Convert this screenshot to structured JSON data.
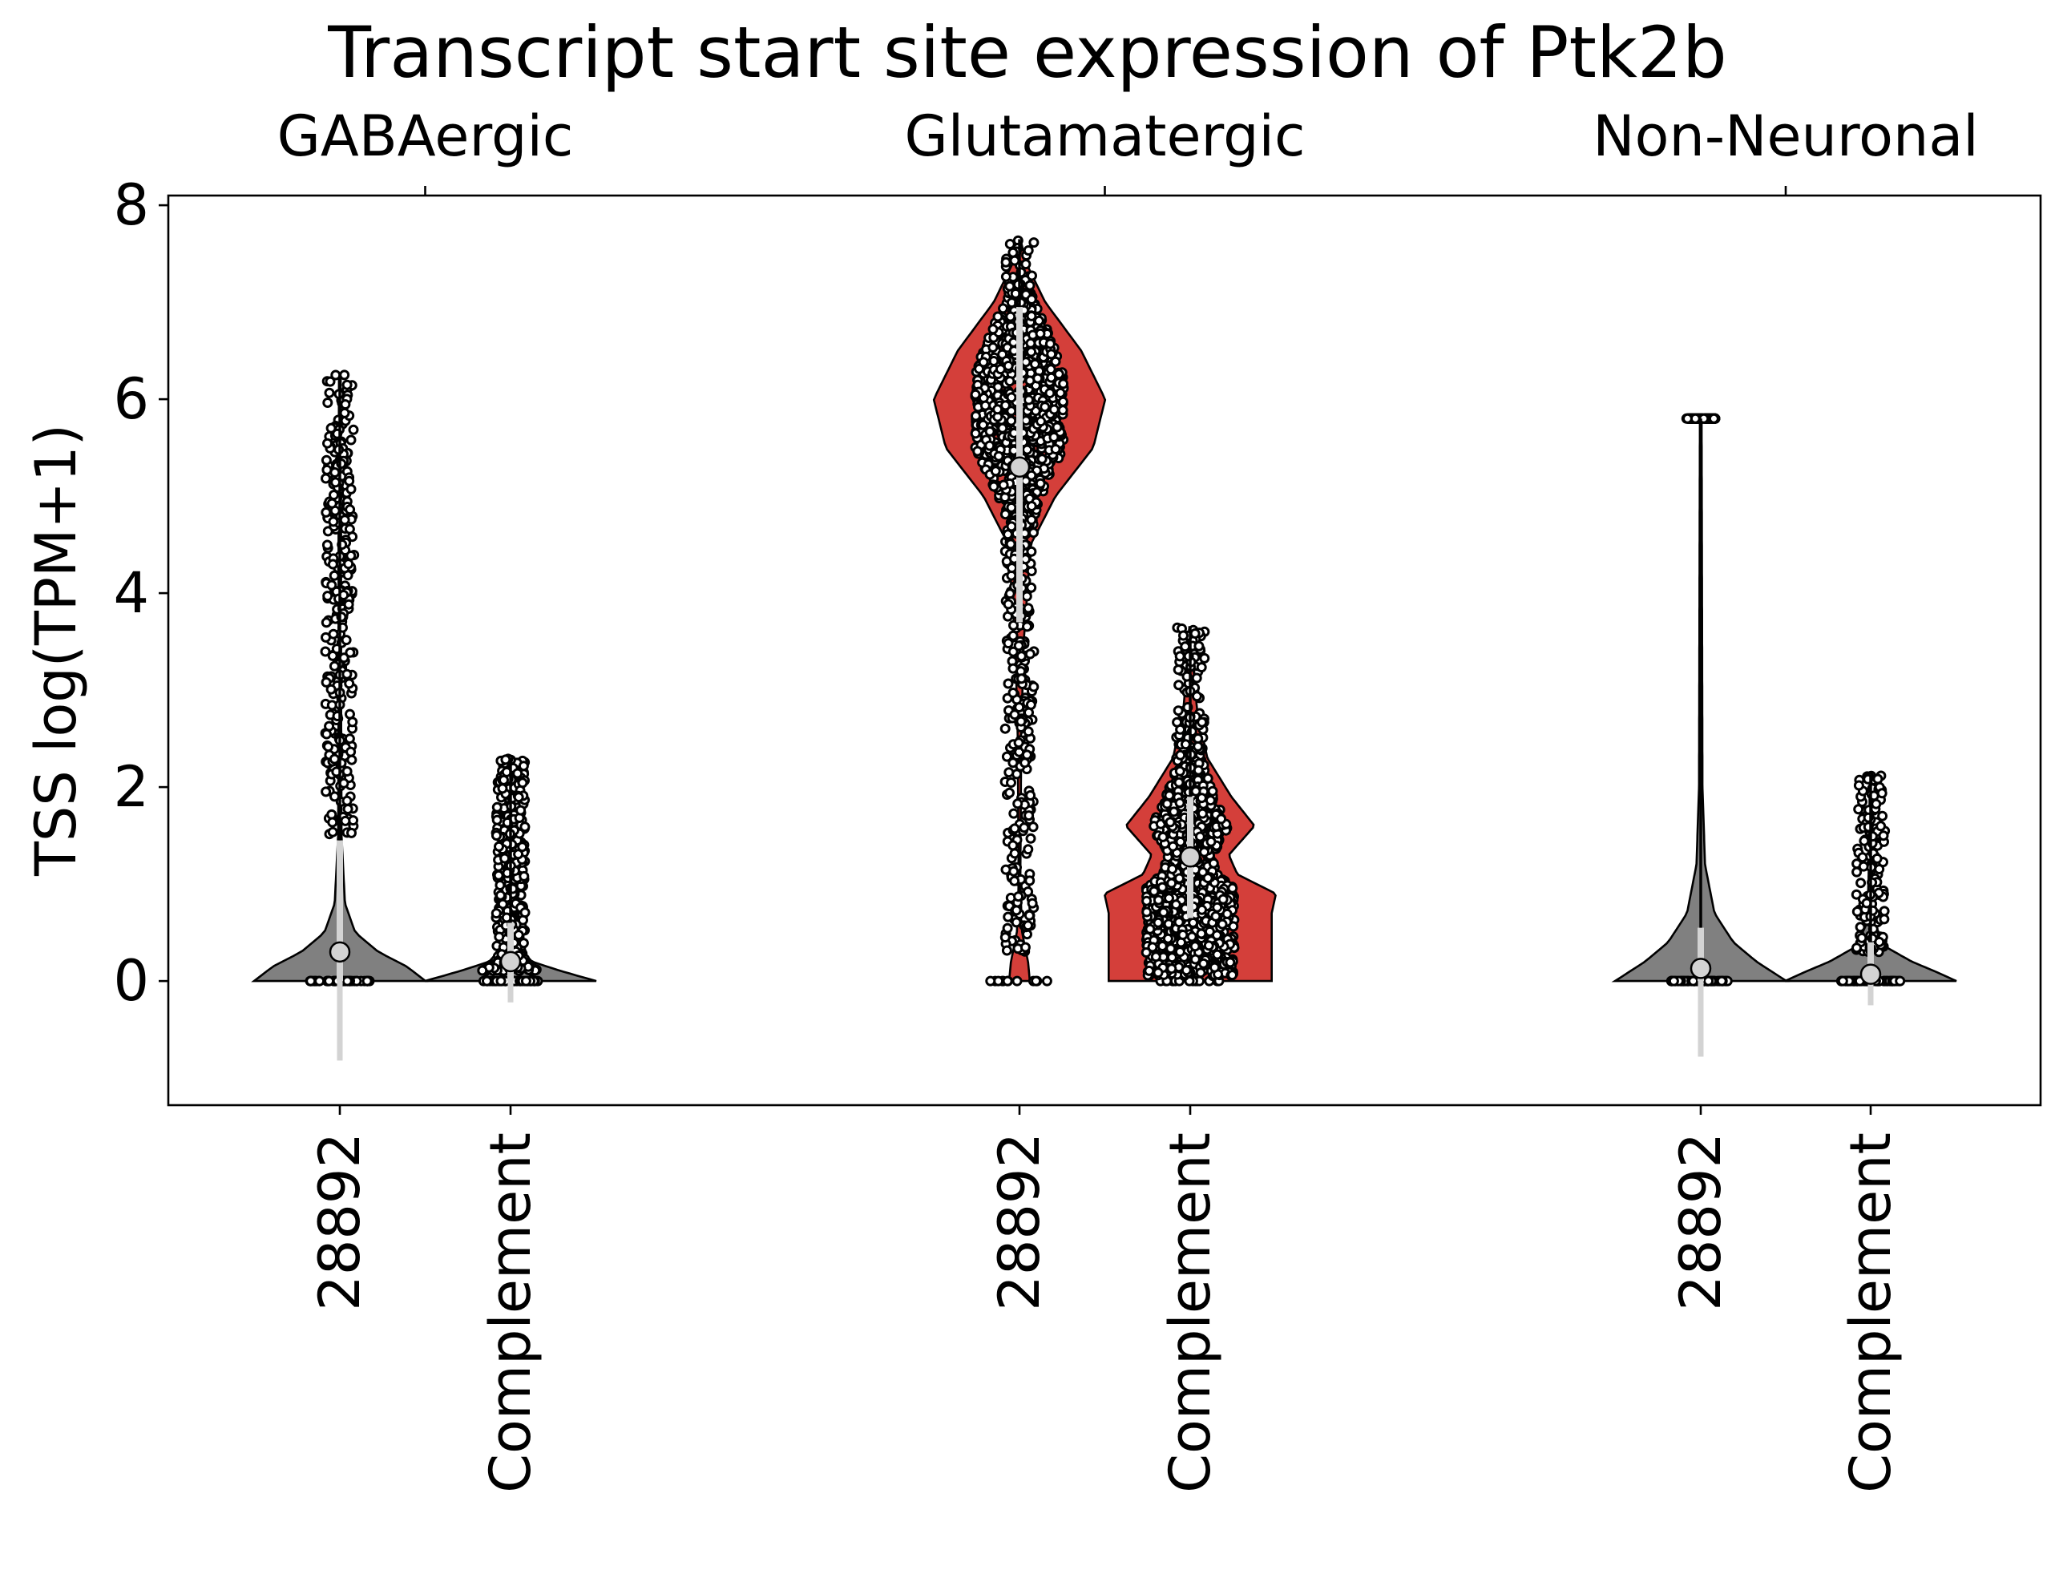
{
  "chart_data": {
    "type": "violin",
    "title": "Transcript start site expression of Ptk2b",
    "ylabel": "TSS log(TPM+1)",
    "xlabel": "",
    "ylim": [
      -1.28,
      8.1
    ],
    "yticks": [
      0,
      2,
      4,
      6,
      8
    ],
    "grid": false,
    "legend": "none",
    "groups": [
      "GABAergic",
      "Glutamatergic",
      "Non-Neuronal"
    ],
    "categories": [
      "28892",
      "Complement",
      "28892",
      "Complement",
      "28892",
      "Complement"
    ],
    "colors": {
      "highlight": "#d43f3a",
      "neutral": "#808080",
      "box": "#d3d3d3"
    },
    "series": [
      {
        "group": "GABAergic",
        "category": "28892",
        "color": "#808080",
        "median": 0.3,
        "q1": 0.0,
        "q3": 1.45,
        "whisker_low": -0.82,
        "whisker_high": 1.45,
        "max": 6.25,
        "fraction_zero": 0.6,
        "density": [
          [
            0,
            1.0
          ],
          [
            0.15,
            0.78
          ],
          [
            0.3,
            0.45
          ],
          [
            0.5,
            0.18
          ],
          [
            0.8,
            0.06
          ],
          [
            1.5,
            0.02
          ],
          [
            3,
            0.015
          ],
          [
            4.5,
            0.015
          ],
          [
            6.25,
            0.01
          ]
        ],
        "nonzero_range": [
          1.5,
          6.25
        ]
      },
      {
        "group": "GABAergic",
        "category": "Complement",
        "color": "#808080",
        "median": 0.2,
        "q1": 0.0,
        "q3": 0.6,
        "whisker_low": -0.22,
        "whisker_high": 0.6,
        "max": 2.3,
        "fraction_zero": 0.45,
        "density": [
          [
            0,
            1.0
          ],
          [
            0.1,
            0.6
          ],
          [
            0.2,
            0.25
          ],
          [
            0.4,
            0.05
          ],
          [
            1.0,
            0.02
          ],
          [
            2.3,
            0.01
          ]
        ],
        "nonzero_range": [
          0.1,
          2.3
        ]
      },
      {
        "group": "Glutamatergic",
        "category": "28892",
        "color": "#d43f3a",
        "median": 5.3,
        "q1": 3.7,
        "q3": 6.95,
        "whisker_low": 3.7,
        "whisker_high": 6.95,
        "max": 7.65,
        "fraction_zero": 0.03,
        "density": [
          [
            0,
            0.12
          ],
          [
            0.2,
            0.1
          ],
          [
            0.5,
            0.03
          ],
          [
            1,
            0.01
          ],
          [
            2.5,
            0.02
          ],
          [
            3.5,
            0.05
          ],
          [
            4.5,
            0.13
          ],
          [
            5.0,
            0.42
          ],
          [
            5.5,
            0.86
          ],
          [
            6.0,
            1.0
          ],
          [
            6.5,
            0.72
          ],
          [
            7.0,
            0.3
          ],
          [
            7.4,
            0.08
          ],
          [
            7.65,
            0.01
          ]
        ],
        "nonzero_range": [
          0.3,
          7.65
        ]
      },
      {
        "group": "Glutamatergic",
        "category": "Complement",
        "color": "#d43f3a",
        "median": 1.28,
        "q1": 0.65,
        "q3": 1.9,
        "whisker_low": 0.65,
        "whisker_high": 1.9,
        "max": 3.65,
        "fraction_zero": 0.08,
        "density": [
          [
            0.7,
            0.95
          ],
          [
            0.9,
            1.0
          ],
          [
            1.1,
            0.55
          ],
          [
            1.3,
            0.45
          ],
          [
            1.6,
            0.75
          ],
          [
            1.9,
            0.48
          ],
          [
            2.3,
            0.2
          ],
          [
            2.8,
            0.08
          ],
          [
            3.3,
            0.03
          ],
          [
            3.65,
            0.01
          ]
        ],
        "nonzero_range": [
          0.05,
          3.65
        ]
      },
      {
        "group": "Non-Neuronal",
        "category": "28892",
        "color": "#808080",
        "median": 0.13,
        "q1": 0.0,
        "q3": 0.55,
        "whisker_low": -0.78,
        "whisker_high": 0.55,
        "max": 5.8,
        "fraction_zero": 0.85,
        "density": [
          [
            0,
            1.0
          ],
          [
            0.2,
            0.65
          ],
          [
            0.4,
            0.38
          ],
          [
            0.7,
            0.16
          ],
          [
            1.2,
            0.05
          ],
          [
            2,
            0.02
          ],
          [
            4,
            0.015
          ],
          [
            5.8,
            0.01
          ]
        ],
        "nonzero_range": [
          5.8,
          5.8
        ]
      },
      {
        "group": "Non-Neuronal",
        "category": "Complement",
        "color": "#808080",
        "median": 0.07,
        "q1": 0.0,
        "q3": 0.4,
        "whisker_low": -0.25,
        "whisker_high": 0.4,
        "max": 2.12,
        "fraction_zero": 0.8,
        "density": [
          [
            0,
            1.0
          ],
          [
            0.1,
            0.75
          ],
          [
            0.2,
            0.48
          ],
          [
            0.35,
            0.18
          ],
          [
            0.6,
            0.04
          ],
          [
            1.2,
            0.02
          ],
          [
            2.12,
            0.01
          ]
        ],
        "nonzero_range": [
          0.3,
          2.12
        ]
      }
    ]
  }
}
